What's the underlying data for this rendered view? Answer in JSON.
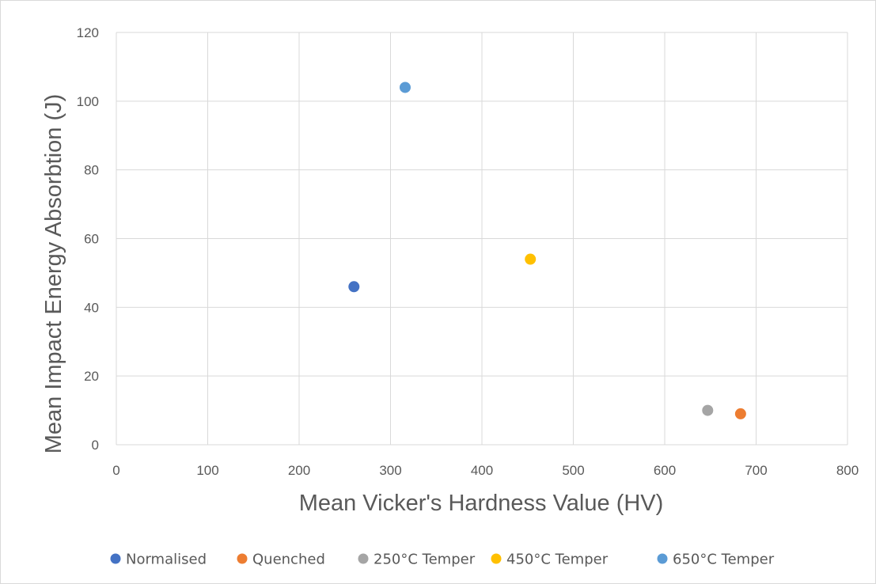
{
  "chart_data": {
    "type": "scatter",
    "title": "",
    "xlabel": "Mean Vicker's Hardness Value (HV)",
    "ylabel": "Mean Impact Energy Absorbtion (J)",
    "xlim": [
      0,
      800
    ],
    "ylim": [
      0,
      120
    ],
    "x_ticks": [
      "0",
      "100",
      "200",
      "300",
      "400",
      "500",
      "600",
      "700",
      "800"
    ],
    "y_ticks": [
      "0",
      "20",
      "40",
      "60",
      "80",
      "100",
      "120"
    ],
    "grid": true,
    "legend_position": "bottom",
    "series": [
      {
        "name": "Normalised",
        "color": "#4472C4",
        "points": [
          {
            "x": 260,
            "y": 46
          }
        ]
      },
      {
        "name": "Quenched",
        "color": "#ED7D31",
        "points": [
          {
            "x": 683,
            "y": 9
          }
        ]
      },
      {
        "name": "250°C Temper",
        "color": "#A5A5A5",
        "points": [
          {
            "x": 647,
            "y": 10
          }
        ]
      },
      {
        "name": "450°C Temper",
        "color": "#FFC000",
        "points": [
          {
            "x": 453,
            "y": 54
          }
        ]
      },
      {
        "name": "650°C Temper",
        "color": "#5B9BD5",
        "points": [
          {
            "x": 316,
            "y": 104
          }
        ]
      }
    ]
  }
}
